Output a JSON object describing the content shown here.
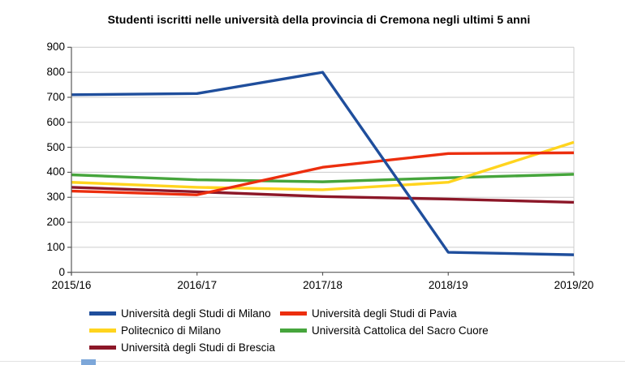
{
  "title": "Studenti iscritti nelle università della provincia di Cremona negli ultimi 5 anni",
  "chart_data": {
    "type": "line",
    "categories": [
      "2015/16",
      "2016/17",
      "2017/18",
      "2018/19",
      "2019/20"
    ],
    "series": [
      {
        "name": "Università degli Studi di Milano",
        "color": "#1F4E9C",
        "values": [
          710,
          715,
          800,
          80,
          70
        ]
      },
      {
        "name": "Università degli Studi di Pavia",
        "color": "#EC2E0E",
        "values": [
          325,
          310,
          420,
          475,
          478
        ]
      },
      {
        "name": "Politecnico di Milano",
        "color": "#FFD41E",
        "values": [
          360,
          340,
          330,
          360,
          520
        ]
      },
      {
        "name": "Università Cattolica del Sacro Cuore",
        "color": "#46A53C",
        "values": [
          390,
          370,
          362,
          378,
          392
        ]
      },
      {
        "name": "Università degli Studi di Brescia",
        "color": "#8C1728",
        "values": [
          340,
          322,
          303,
          293,
          280
        ]
      }
    ],
    "title": "Studenti iscritti nelle università della provincia di Cremona negli ultimi 5 anni",
    "xlabel": "",
    "ylabel": "",
    "ylim": [
      0,
      900
    ],
    "yticks": [
      0,
      100,
      200,
      300,
      400,
      500,
      600,
      700,
      800,
      900
    ],
    "grid": true,
    "legend_position": "bottom"
  },
  "colors": {
    "background": "#FFFFFF",
    "gridline": "#CCCCCC",
    "axis": "#595959",
    "text": "#000000",
    "selection_handle": "#7DA7D9"
  }
}
